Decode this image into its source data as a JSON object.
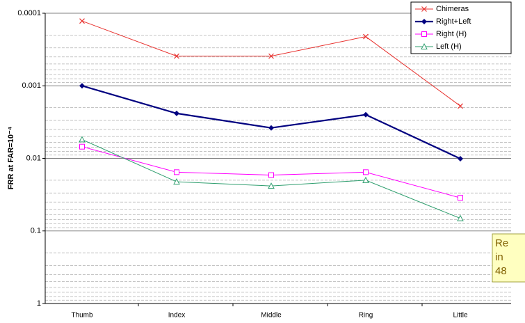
{
  "chart_data": {
    "type": "line",
    "ylabel": "FRR at FAR=10⁻⁴",
    "categories": [
      "Thumb",
      "Index",
      "Middle",
      "Ring",
      "Little"
    ],
    "series": [
      {
        "name": "Chimeras",
        "color": "#e8322f",
        "marker": "x",
        "values": [
          0.000128,
          0.00039,
          0.00039,
          0.00021,
          0.0019
        ]
      },
      {
        "name": "Right+Left",
        "color": "#000080",
        "marker": "diamond",
        "values": [
          0.001,
          0.0024,
          0.0038,
          0.0025,
          0.0101
        ]
      },
      {
        "name": "Right (H)",
        "color": "#ff00ff",
        "marker": "square",
        "values": [
          0.0069,
          0.0155,
          0.017,
          0.0155,
          0.035
        ]
      },
      {
        "name": "Left (H)",
        "color": "#2e9e6e",
        "marker": "triangle",
        "values": [
          0.0055,
          0.021,
          0.024,
          0.02,
          0.067
        ]
      }
    ],
    "yscale": "log",
    "ylim": [
      1,
      0.0001
    ],
    "yticks": [
      0.0001,
      0.001,
      0.01,
      0.1,
      1
    ],
    "grid": true,
    "minor_grid": true,
    "legend": "top-right",
    "annotation": [
      "Re",
      "in",
      "48"
    ]
  }
}
